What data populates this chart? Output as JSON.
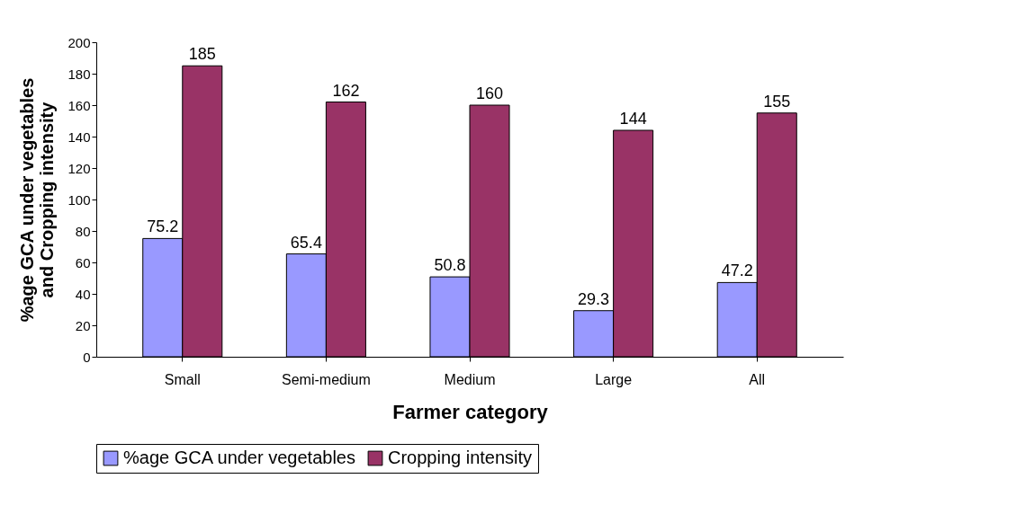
{
  "chart_data": {
    "type": "bar",
    "xlabel": "Farmer category",
    "ylabel": "%age GCA under vegetables and Cropping intensity",
    "categories": [
      "Small",
      "Semi-medium",
      "Medium",
      "Large",
      "All"
    ],
    "series": [
      {
        "name": "%age GCA under vegetables",
        "color": "#9999ff",
        "values": [
          75.2,
          65.4,
          50.8,
          29.3,
          47.2
        ]
      },
      {
        "name": "Cropping intensity",
        "color": "#993366",
        "values": [
          185,
          162,
          160,
          144,
          155
        ]
      }
    ],
    "ylim": [
      0,
      200
    ],
    "yticks": [
      0,
      20,
      40,
      60,
      80,
      100,
      120,
      140,
      160,
      180,
      200
    ],
    "data_labels": true,
    "legend": "bottom",
    "grid": false
  }
}
